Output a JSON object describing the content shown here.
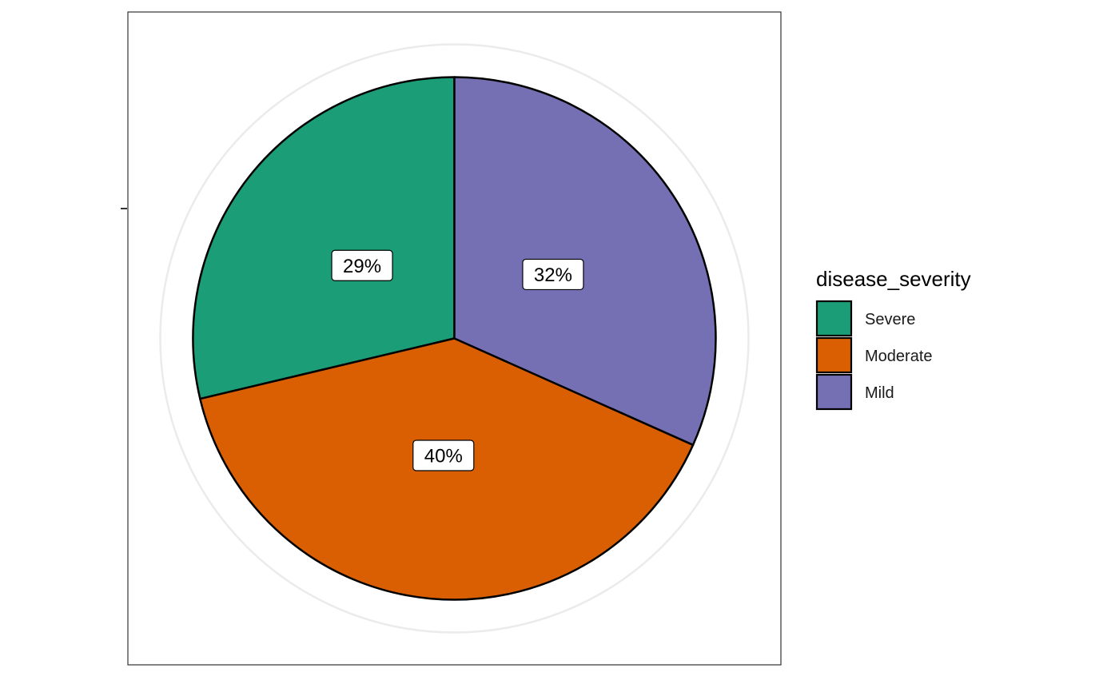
{
  "chart_data": {
    "type": "pie",
    "legend_title": "disease_severity",
    "legend_position": "right",
    "slices": [
      {
        "label": "Severe",
        "value": 29,
        "display": "29%",
        "color": "#1B9E77"
      },
      {
        "label": "Moderate",
        "value": 40,
        "display": "40%",
        "color": "#D95F02"
      },
      {
        "label": "Mild",
        "value": 32,
        "display": "32%",
        "color": "#7570B3"
      }
    ],
    "grid": true
  }
}
